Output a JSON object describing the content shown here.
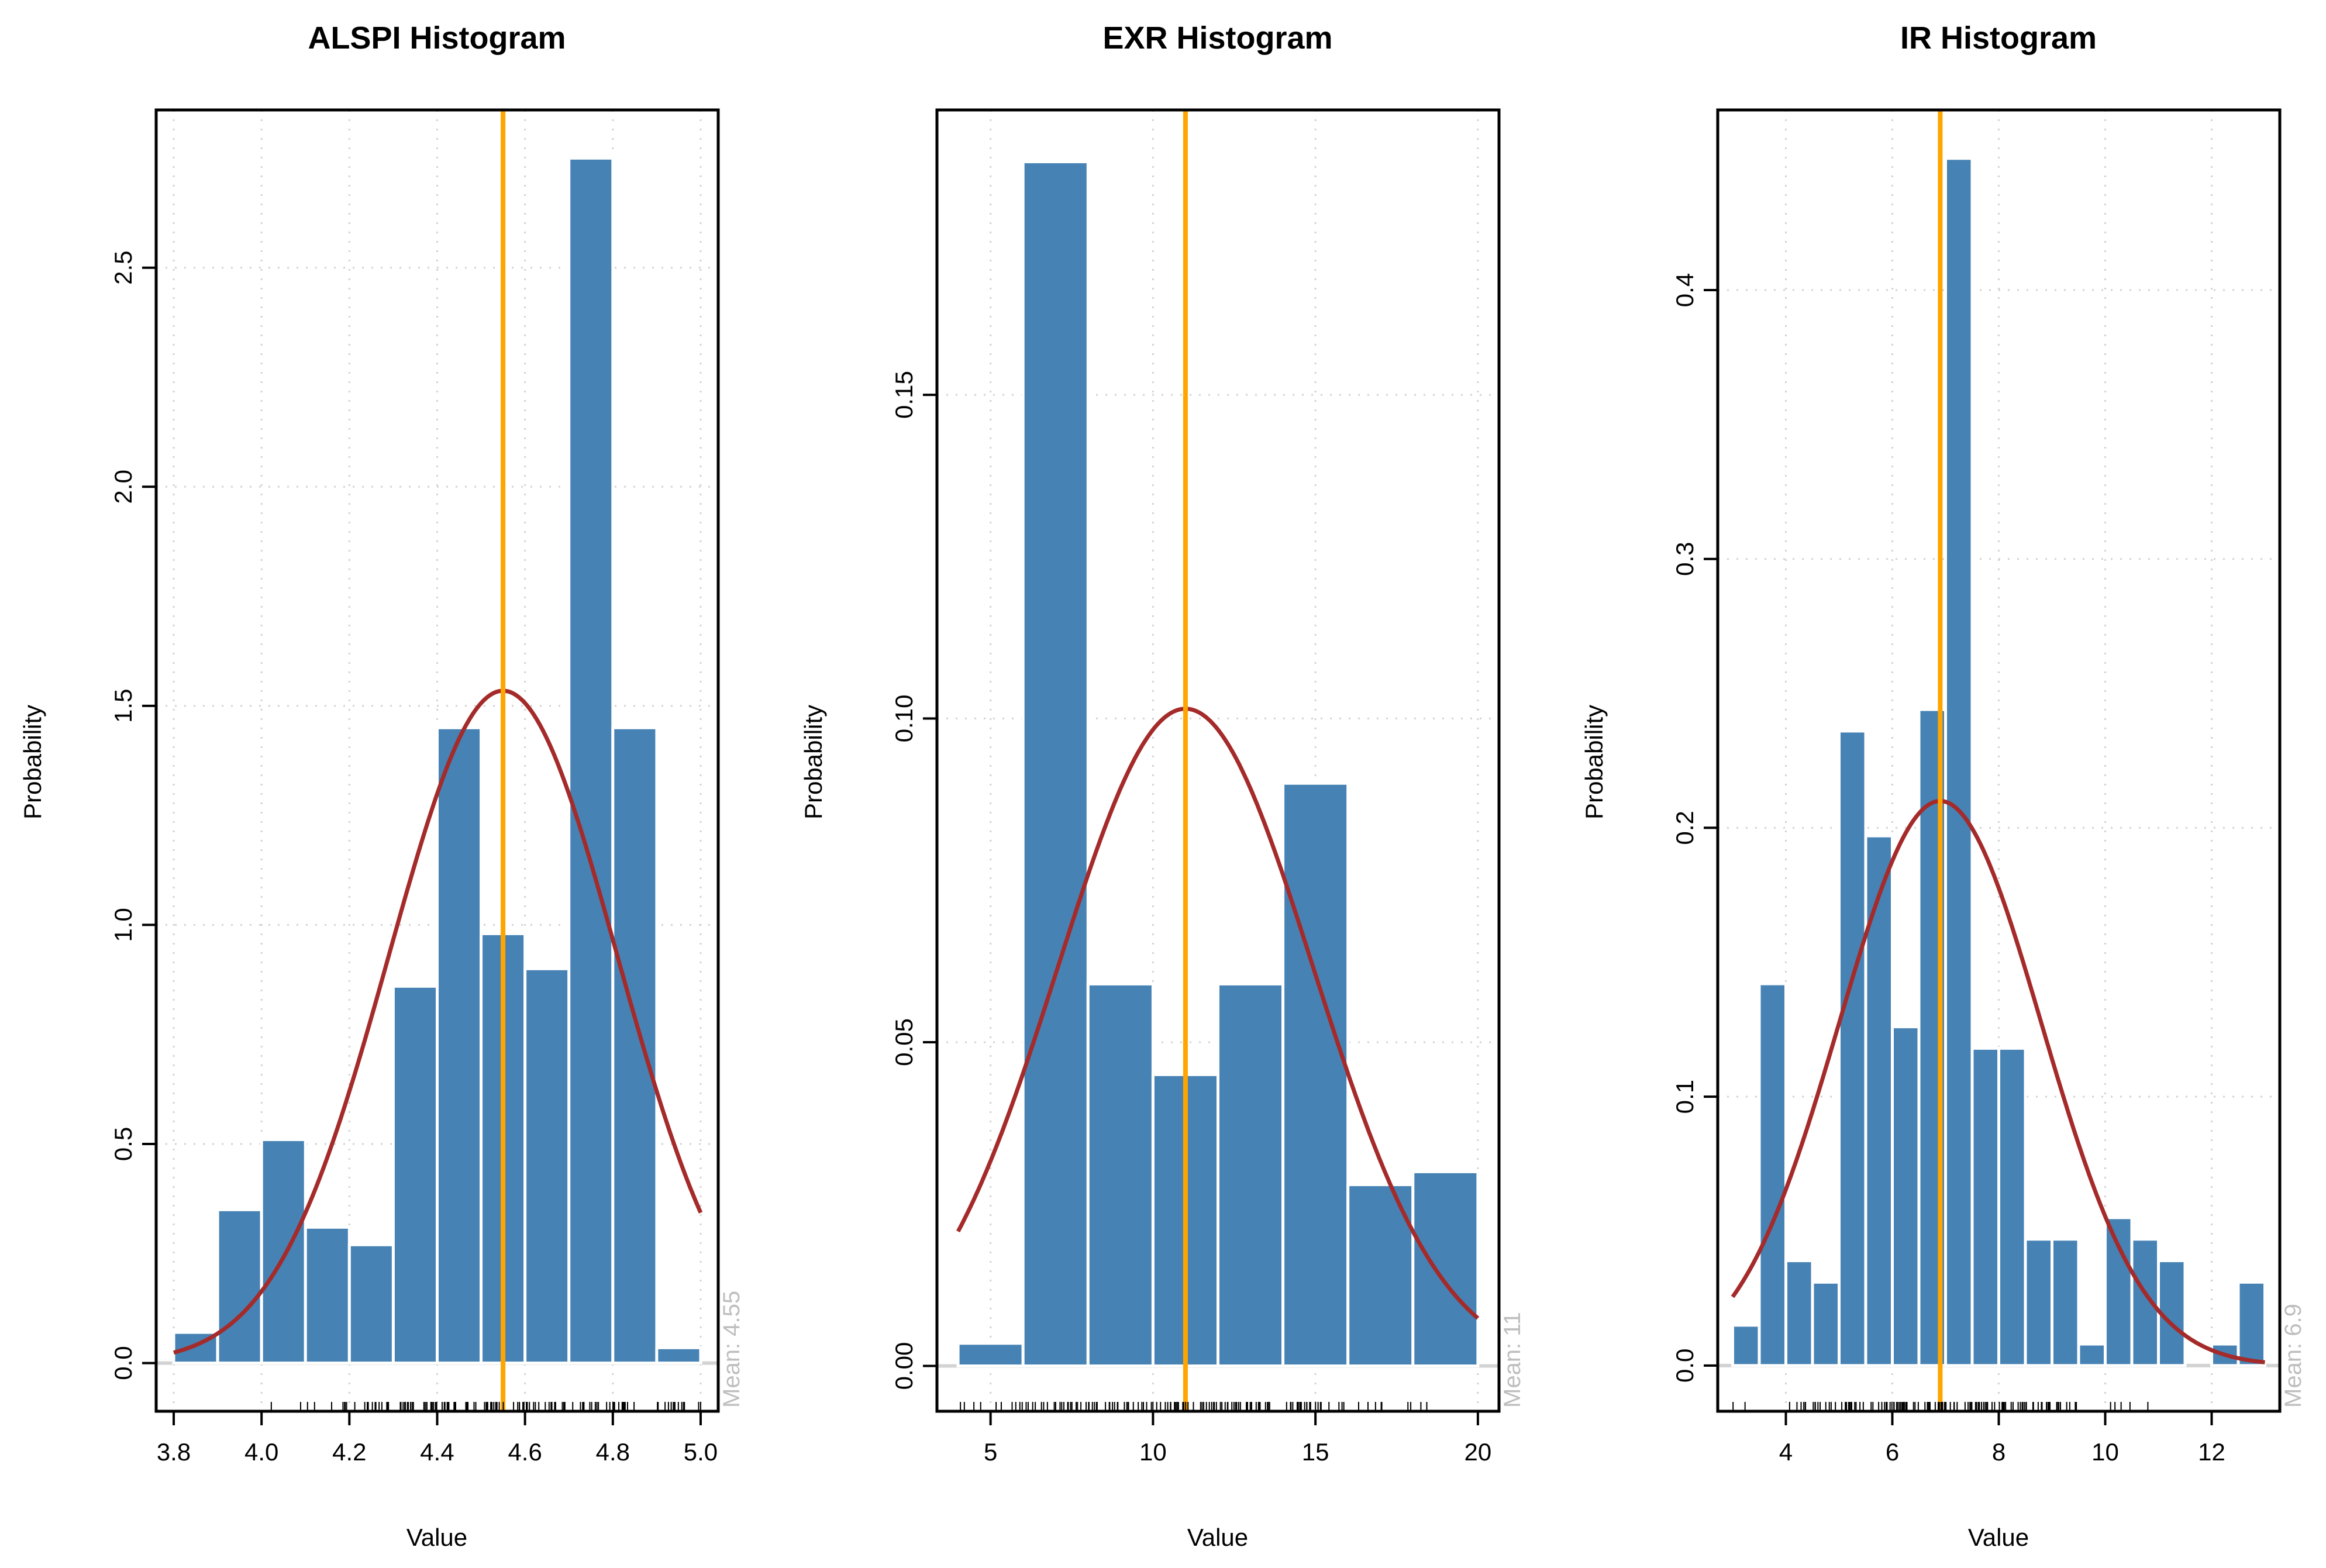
{
  "colors": {
    "bar_fill": "#4682b4",
    "bar_stroke": "#ffffff",
    "curve": "#a52a2a",
    "mean_line": "#ffa500",
    "grid": "#d3d3d3",
    "baseline": "#d3d3d3",
    "rug": "#000000",
    "mean_label": "#bebebe",
    "frame": "#000000"
  },
  "chart_data": [
    {
      "type": "bar",
      "title": "ALSPI Histogram",
      "xlabel": "Value",
      "ylabel": "Probability",
      "grid": true,
      "xlim": [
        3.76,
        5.04
      ],
      "ylim": [
        -0.11,
        2.86
      ],
      "xticks": [
        3.8,
        4.0,
        4.2,
        4.4,
        4.6,
        4.8,
        5.0
      ],
      "xtick_labels": [
        "3.8",
        "4.0",
        "4.2",
        "4.4",
        "4.6",
        "4.8",
        "5.0"
      ],
      "yticks": [
        0.0,
        0.5,
        1.0,
        1.5,
        2.0,
        2.5
      ],
      "ytick_labels": [
        "0.0",
        "0.5",
        "1.0",
        "1.5",
        "2.0",
        "2.5"
      ],
      "bin_edges": [
        3.8,
        3.9,
        4.0,
        4.1,
        4.2,
        4.3,
        4.4,
        4.5,
        4.6,
        4.7,
        4.8,
        4.9,
        5.0
      ],
      "values": [
        0.07,
        0.35,
        0.51,
        0.31,
        0.27,
        0.86,
        1.45,
        0.98,
        0.9,
        2.75,
        1.45,
        0.035
      ],
      "mean": 4.55,
      "sd": 0.26,
      "curve_range": [
        3.8,
        5.0
      ],
      "mean_label": "Mean: 4.55"
    },
    {
      "type": "bar",
      "title": "EXR Histogram",
      "xlabel": "Value",
      "ylabel": "Probability",
      "grid": true,
      "xlim": [
        3.35,
        20.65
      ],
      "ylim": [
        -0.007,
        0.194
      ],
      "xticks": [
        5,
        10,
        15,
        20
      ],
      "xtick_labels": [
        "5",
        "10",
        "15",
        "20"
      ],
      "yticks": [
        0.0,
        0.05,
        0.1,
        0.15
      ],
      "ytick_labels": [
        "0.00",
        "0.05",
        "0.10",
        "0.15"
      ],
      "bin_edges": [
        4,
        6,
        8,
        10,
        12,
        14,
        16,
        18,
        20
      ],
      "values": [
        0.0035,
        0.186,
        0.059,
        0.045,
        0.059,
        0.09,
        0.028,
        0.03
      ],
      "mean": 11,
      "sd": 3.93,
      "curve_range": [
        4,
        20
      ],
      "mean_label": "Mean: 11"
    },
    {
      "type": "bar",
      "title": "IR Histogram",
      "xlabel": "Value",
      "ylabel": "Probability",
      "grid": true,
      "xlim": [
        2.72,
        13.28
      ],
      "ylim": [
        -0.017,
        0.467
      ],
      "xticks": [
        4,
        6,
        8,
        10,
        12
      ],
      "xtick_labels": [
        "4",
        "6",
        "8",
        "10",
        "12"
      ],
      "yticks": [
        0.0,
        0.1,
        0.2,
        0.3,
        0.4
      ],
      "ytick_labels": [
        "0.0",
        "0.1",
        "0.2",
        "0.3",
        "0.4"
      ],
      "bin_edges": [
        3.0,
        3.5,
        4.0,
        4.5,
        5.0,
        5.5,
        6.0,
        6.5,
        7.0,
        7.5,
        8.0,
        8.5,
        9.0,
        9.5,
        10.0,
        10.5,
        11.0,
        11.5,
        12.0,
        12.5,
        13.0
      ],
      "values": [
        0.015,
        0.142,
        0.039,
        0.031,
        0.236,
        0.197,
        0.126,
        0.244,
        0.449,
        0.118,
        0.118,
        0.047,
        0.047,
        0.008,
        0.055,
        0.047,
        0.039,
        0.0,
        0.008,
        0.031
      ],
      "mean": 6.9,
      "sd": 1.9,
      "curve_range": [
        3.0,
        13.0
      ],
      "mean_label": "Mean: 6.9"
    }
  ]
}
